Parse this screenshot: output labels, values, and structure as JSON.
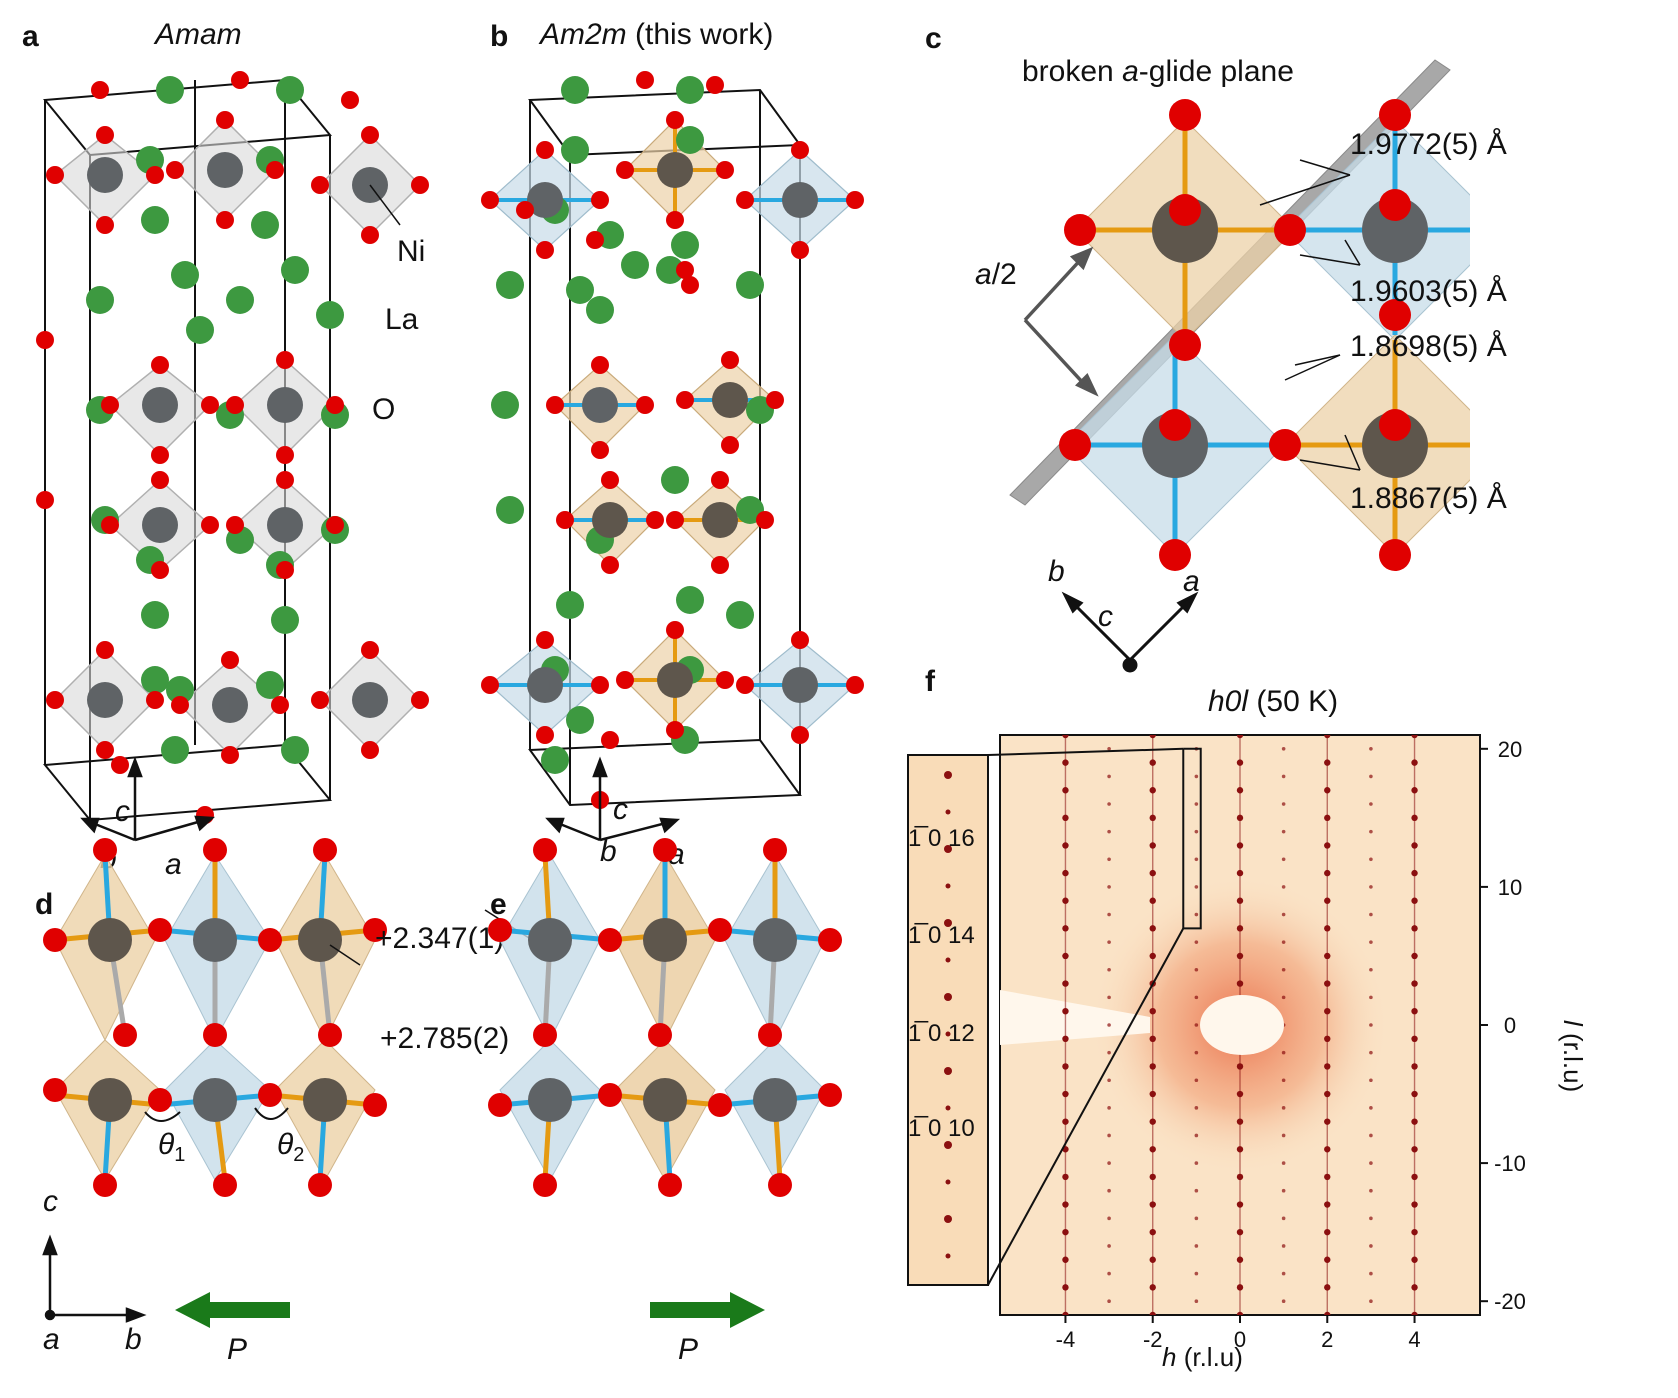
{
  "panels": {
    "a": {
      "label": "a",
      "title": "Amam",
      "atoms": {
        "ni": "Ni",
        "la": "La",
        "o": "O"
      },
      "axes": {
        "c": "c",
        "b": "b",
        "a": "a"
      }
    },
    "b": {
      "label": "b",
      "title_italic": "Am2m",
      "title_rest": "(this work)",
      "axes": {
        "c": "c",
        "b": "b",
        "a": "a"
      }
    },
    "c": {
      "label": "c",
      "title_pre": "broken ",
      "title_italic": "a",
      "title_post": "-glide plane",
      "translation_italic": "a",
      "translation_rest": "/2",
      "bonds": [
        "1.9772(5) Å",
        "1.9603(5) Å",
        "1.8698(5) Å",
        "1.8867(5) Å"
      ],
      "axes": {
        "b": "b",
        "a": "a",
        "c": "c"
      }
    },
    "d": {
      "label": "d",
      "angle1": "θ",
      "angle1_sub": "1",
      "angle2": "θ",
      "angle2_sub": "2",
      "valence1": "+2.347(1)",
      "valence2": "+2.785(2)",
      "axes": {
        "c": "c",
        "a": "a",
        "b": "b"
      },
      "polarization": "P"
    },
    "e": {
      "label": "e",
      "polarization": "P"
    },
    "f": {
      "label": "f",
      "title_italic": "h0l",
      "title_rest": "(50 K)",
      "x_label_italic": "h",
      "x_label_rest": "(r.l.u)",
      "y_label_italic": "l",
      "y_label_rest": "(r.l.u)",
      "inset_labels": [
        "1̅ 0 16",
        "1̅ 0 14",
        "1̅ 0 12",
        "1̅ 0 10"
      ]
    }
  },
  "chart_data": {
    "type": "scatter",
    "title": "h0l (50 K)",
    "xlabel": "h (r.l.u)",
    "ylabel": "l (r.l.u)",
    "xlim": [
      -5.5,
      5.5
    ],
    "ylim": [
      -21,
      21
    ],
    "xticks": [
      -4,
      -2,
      0,
      2,
      4
    ],
    "yticks": [
      -20,
      -10,
      0,
      10,
      20
    ],
    "xtick_labels": [
      "-4",
      "-2",
      "0",
      "2",
      "4"
    ],
    "ytick_labels": [
      "-20",
      "-10",
      "0",
      "10",
      "20"
    ],
    "bragg_rod_h": [
      -4,
      -2,
      0,
      2,
      4
    ],
    "weak_rod_h": [
      -3,
      -1,
      1,
      3
    ],
    "inset_region": {
      "h": [
        -1.3,
        -0.9
      ],
      "l": [
        7,
        20
      ]
    }
  },
  "colors": {
    "ni": "#5f6366",
    "ni_brown": "#5e564c",
    "la": "#3d9940",
    "o": "#e00000",
    "bond_blue": "#29a8e0",
    "bond_orange": "#e59a12",
    "octa_gray": "#d8d8d8",
    "octa_blue": "#c7dce8",
    "octa_orange": "#ecd2a8",
    "arrow_green": "#1a7a1a",
    "map_bg": "#fae3c6",
    "spot": "#8b1010"
  }
}
